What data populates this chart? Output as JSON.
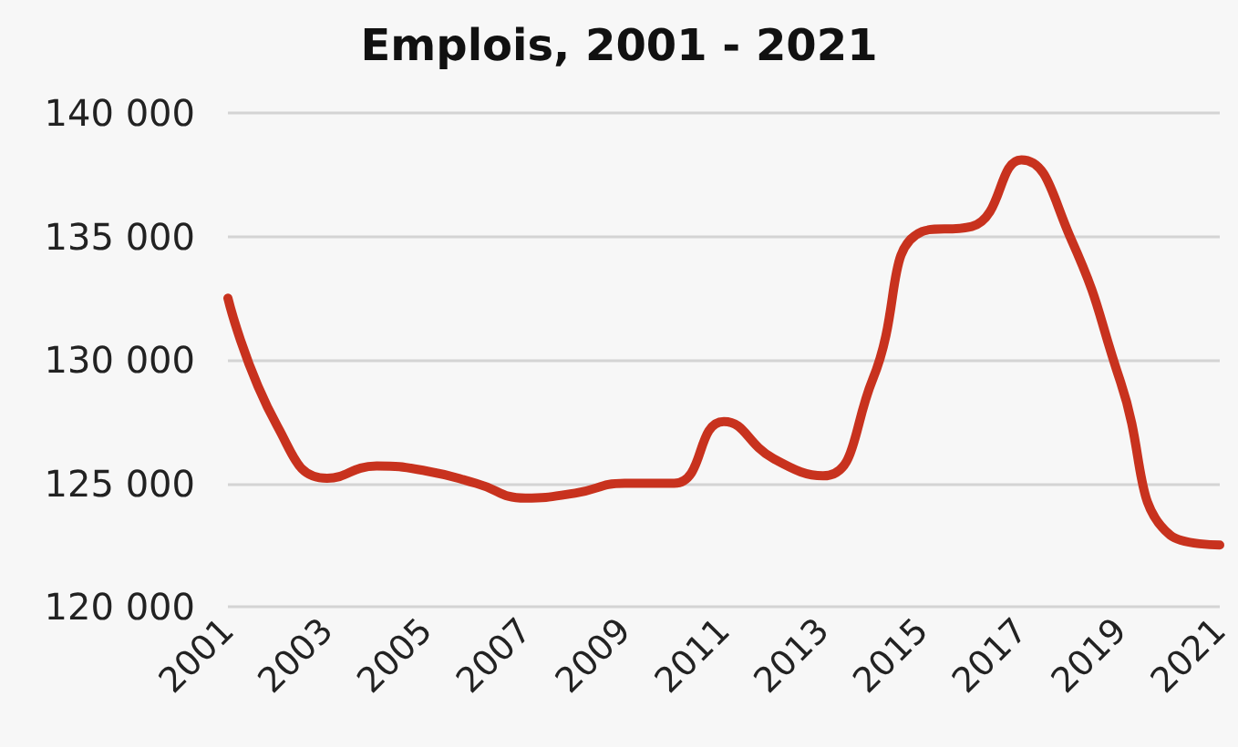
{
  "chart_data": {
    "type": "line",
    "title": "Emplois, 2001 - 2021",
    "categories": [
      "2001",
      null,
      "2003",
      null,
      "2005",
      null,
      "2007",
      null,
      "2009",
      null,
      "2011",
      null,
      "2013",
      null,
      "2015",
      null,
      "2017",
      null,
      "2019",
      null,
      "2021"
    ],
    "series": [
      {
        "color": "#c8321e",
        "values": [
          132500,
          127300,
          125200,
          125700,
          125500,
          125000,
          124400,
          124600,
          125000,
          125000,
          127500,
          126000,
          125300,
          129200,
          135200,
          135400,
          138100,
          134900,
          129100,
          122900,
          122500
        ]
      }
    ],
    "ylim": [
      120000,
      140000
    ],
    "yticks": [
      {
        "value": 120000,
        "label": "120 000"
      },
      {
        "value": 125000,
        "label": "125 000"
      },
      {
        "value": 130000,
        "label": "130 000"
      },
      {
        "value": 135000,
        "label": "135 000"
      },
      {
        "value": 140000,
        "label": "140 000"
      }
    ],
    "grid": "y",
    "marker": "none",
    "line_style": "solid"
  }
}
